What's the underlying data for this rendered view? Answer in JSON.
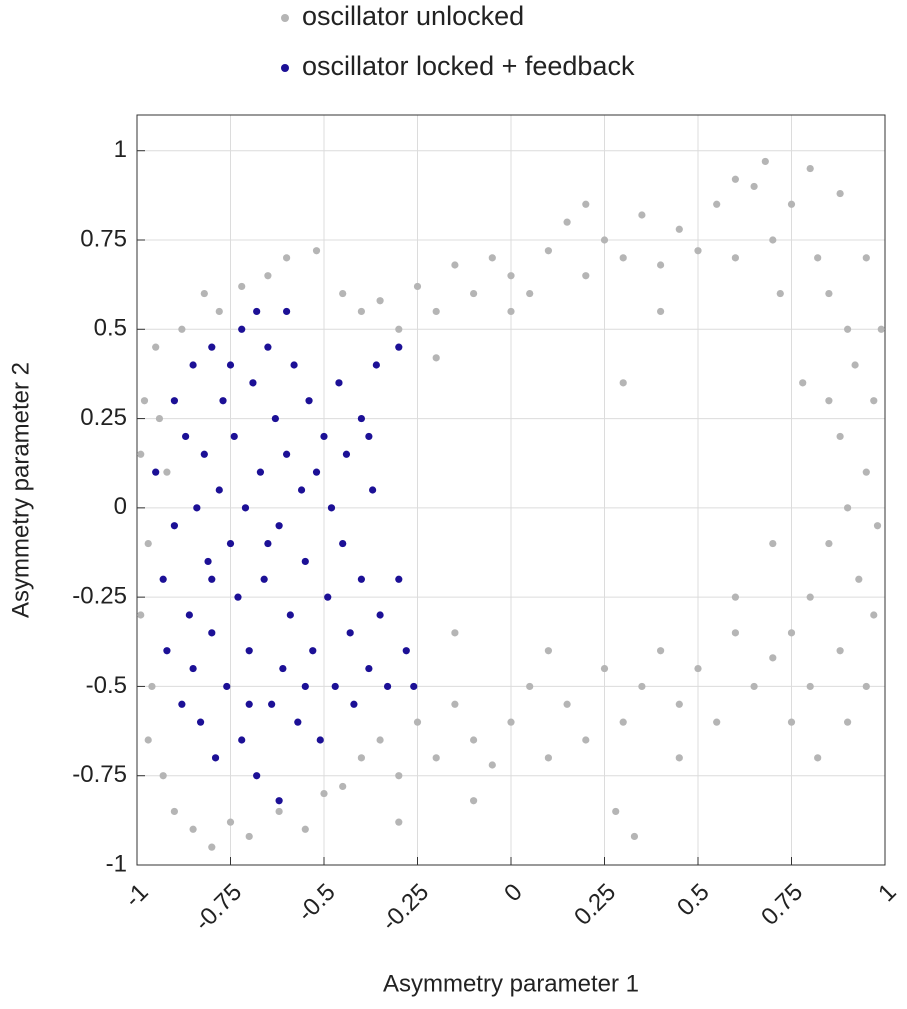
{
  "chart_data": {
    "type": "scatter",
    "xlabel": "Asymmetry parameter 1",
    "ylabel": "Asymmetry parameter 2",
    "xlim": [
      -1,
      1
    ],
    "ylim": [
      -1,
      1.1
    ],
    "xticks": [
      -1,
      -0.75,
      -0.5,
      -0.25,
      0,
      0.25,
      0.5,
      0.75,
      1
    ],
    "yticks": [
      -1,
      -0.75,
      -0.5,
      -0.25,
      0,
      0.25,
      0.5,
      0.75,
      1
    ],
    "grid": true,
    "legend": "top",
    "series": [
      {
        "name": "oscillator unlocked",
        "color": "#b5b5b5",
        "x": [
          -0.98,
          -0.97,
          -0.96,
          -0.95,
          -0.93,
          -0.92,
          -0.9,
          -0.88,
          -0.85,
          -0.82,
          -0.8,
          -0.78,
          -0.75,
          -0.72,
          -0.7,
          -0.65,
          -0.62,
          -0.6,
          -0.55,
          -0.52,
          -0.99,
          -0.99,
          -0.97,
          -0.94,
          -0.5,
          -0.45,
          -0.45,
          -0.4,
          -0.35,
          -0.3,
          -0.25,
          -0.2,
          -0.15,
          -0.1,
          -0.05,
          0,
          0.05,
          0.1,
          0.15,
          0.2,
          0.25,
          0.3,
          0.35,
          0.4,
          0.45,
          0.5,
          0.55,
          0.6,
          0.65,
          0.7,
          0.72,
          0.75,
          0.8,
          0.82,
          0.85,
          0.88,
          0.9,
          0.0,
          0.2,
          -0.2,
          0.4,
          0.6,
          0.68,
          0.3,
          0.95,
          0.92,
          0.97,
          0.88,
          0.95,
          0.9,
          0.98,
          0.85,
          0.93,
          0.8,
          0.97,
          0.88,
          0.75,
          0.95,
          0.8,
          0.9,
          0.78,
          0.85,
          0.7,
          0.99,
          0.82,
          -0.4,
          -0.35,
          -0.3,
          -0.25,
          -0.2,
          -0.15,
          -0.1,
          -0.05,
          0,
          0.05,
          0.1,
          0.15,
          0.2,
          0.25,
          0.3,
          0.35,
          0.4,
          0.45,
          0.5,
          0.55,
          0.6,
          0.65,
          0.7,
          0.75,
          0.28,
          0.33,
          -0.1,
          0.1,
          0.45,
          -0.3,
          0.6,
          -0.15
        ],
        "values": [
          0.3,
          -0.1,
          -0.5,
          0.45,
          -0.75,
          0.1,
          -0.85,
          0.5,
          -0.9,
          0.6,
          -0.95,
          0.55,
          -0.88,
          0.62,
          -0.92,
          0.65,
          -0.85,
          0.7,
          -0.9,
          0.72,
          -0.3,
          0.15,
          -0.65,
          0.25,
          -0.8,
          -0.78,
          0.6,
          0.55,
          0.58,
          0.5,
          0.62,
          0.55,
          0.68,
          0.6,
          0.7,
          0.65,
          0.6,
          0.72,
          0.8,
          0.65,
          0.75,
          0.7,
          0.82,
          0.68,
          0.78,
          0.72,
          0.85,
          0.7,
          0.9,
          0.75,
          0.6,
          0.85,
          0.95,
          0.7,
          0.6,
          0.88,
          0.5,
          0.55,
          0.85,
          0.42,
          0.55,
          0.92,
          0.97,
          0.35,
          0.7,
          0.4,
          0.3,
          0.2,
          0.1,
          0,
          -0.05,
          -0.1,
          -0.2,
          -0.25,
          -0.3,
          -0.4,
          -0.35,
          -0.5,
          -0.5,
          -0.6,
          0.35,
          0.3,
          -0.1,
          0.5,
          -0.7,
          -0.7,
          -0.65,
          -0.75,
          -0.6,
          -0.7,
          -0.55,
          -0.65,
          -0.72,
          -0.6,
          -0.5,
          -0.7,
          -0.55,
          -0.65,
          -0.45,
          -0.6,
          -0.5,
          -0.4,
          -0.55,
          -0.45,
          -0.6,
          -0.35,
          -0.5,
          -0.42,
          -0.6,
          -0.85,
          -0.92,
          -0.82,
          -0.4,
          -0.7,
          -0.88,
          -0.25,
          -0.35
        ]
      },
      {
        "name": "oscillator locked + feedback",
        "color": "#1c1096",
        "x": [
          -0.95,
          -0.93,
          -0.92,
          -0.9,
          -0.9,
          -0.88,
          -0.87,
          -0.86,
          -0.85,
          -0.84,
          -0.83,
          -0.82,
          -0.81,
          -0.8,
          -0.8,
          -0.79,
          -0.78,
          -0.77,
          -0.76,
          -0.75,
          -0.74,
          -0.73,
          -0.72,
          -0.72,
          -0.71,
          -0.7,
          -0.69,
          -0.68,
          -0.67,
          -0.66,
          -0.65,
          -0.64,
          -0.63,
          -0.62,
          -0.61,
          -0.6,
          -0.59,
          -0.58,
          -0.57,
          -0.56,
          -0.55,
          -0.54,
          -0.53,
          -0.52,
          -0.51,
          -0.5,
          -0.49,
          -0.48,
          -0.47,
          -0.46,
          -0.45,
          -0.44,
          -0.43,
          -0.42,
          -0.4,
          -0.4,
          -0.38,
          -0.37,
          -0.36,
          -0.35,
          -0.33,
          -0.3,
          -0.28,
          -0.26,
          -0.3,
          -0.62,
          -0.68,
          -0.6,
          -0.38,
          -0.75,
          -0.85,
          -0.7,
          -0.8,
          -0.65,
          -0.55
        ],
        "values": [
          0.1,
          -0.2,
          -0.4,
          0.3,
          -0.05,
          -0.55,
          0.2,
          -0.3,
          0.4,
          0.0,
          -0.6,
          0.15,
          -0.15,
          0.45,
          -0.35,
          -0.7,
          0.05,
          0.3,
          -0.5,
          -0.1,
          0.2,
          -0.25,
          0.5,
          -0.65,
          0.0,
          -0.4,
          0.35,
          -0.75,
          0.1,
          -0.2,
          0.45,
          -0.55,
          0.25,
          -0.05,
          -0.45,
          0.15,
          -0.3,
          0.4,
          -0.6,
          0.05,
          -0.15,
          0.3,
          -0.4,
          0.1,
          -0.65,
          0.2,
          -0.25,
          0.0,
          -0.5,
          0.35,
          -0.1,
          0.15,
          -0.35,
          -0.55,
          0.25,
          -0.2,
          -0.45,
          0.05,
          0.4,
          -0.3,
          -0.5,
          0.45,
          -0.4,
          -0.5,
          -0.2,
          -0.82,
          0.55,
          0.55,
          0.2,
          0.4,
          -0.45,
          -0.55,
          -0.2,
          -0.1,
          -0.5
        ]
      }
    ]
  }
}
